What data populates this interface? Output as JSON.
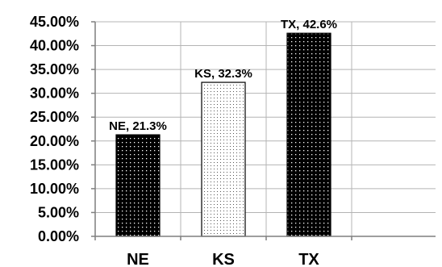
{
  "chart_data": {
    "type": "bar",
    "categories": [
      "NE",
      "KS",
      "TX"
    ],
    "values": [
      21.3,
      32.3,
      42.6
    ],
    "data_labels": [
      "NE, 21.3%",
      "KS, 32.3%",
      "TX, 42.6%"
    ],
    "y_ticks": [
      "0.00%",
      "5.00%",
      "10.00%",
      "15.00%",
      "20.00%",
      "25.00%",
      "30.00%",
      "35.00%",
      "40.00%",
      "45.00%"
    ],
    "ylim": [
      0,
      45
    ],
    "title": "",
    "xlabel": "",
    "ylabel": "",
    "grid": true,
    "legend": "none",
    "bar_patterns": [
      "dense-dark-dots",
      "sparse-light-dots",
      "dense-dark-dots"
    ],
    "colors": {
      "dark_fill": "#000000",
      "light_fill": "#ffffff",
      "dot_light": "#ffffff",
      "dot_dark": "#555555"
    }
  }
}
